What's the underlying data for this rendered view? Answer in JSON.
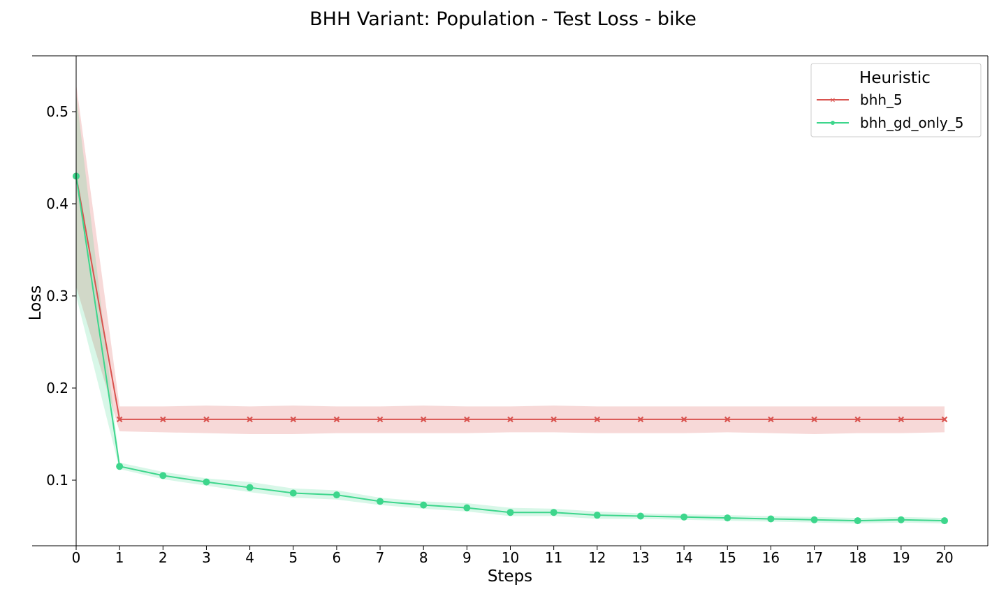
{
  "chart_data": {
    "type": "line",
    "title": "BHH Variant: Population - Test Loss - bike",
    "xlabel": "Steps",
    "ylabel": "Loss",
    "x": [
      0,
      1,
      2,
      3,
      4,
      5,
      6,
      7,
      8,
      9,
      10,
      11,
      12,
      13,
      14,
      15,
      16,
      17,
      18,
      19,
      20
    ],
    "xlim": [
      -1,
      21
    ],
    "ylim": [
      0.01,
      0.56
    ],
    "yticks": [
      0.1,
      0.2,
      0.3,
      0.4,
      0.5
    ],
    "grid": false,
    "legend": {
      "title": "Heuristic",
      "placement": "top-right"
    },
    "series": [
      {
        "name": "bhh_5",
        "color": "#d9534f",
        "marker": "x",
        "values": [
          0.43,
          0.166,
          0.166,
          0.166,
          0.166,
          0.166,
          0.166,
          0.166,
          0.166,
          0.166,
          0.166,
          0.166,
          0.166,
          0.166,
          0.166,
          0.166,
          0.166,
          0.166,
          0.166,
          0.166,
          0.166
        ],
        "lower": [
          0.31,
          0.153,
          0.152,
          0.151,
          0.15,
          0.15,
          0.151,
          0.151,
          0.151,
          0.151,
          0.152,
          0.152,
          0.151,
          0.151,
          0.151,
          0.152,
          0.151,
          0.15,
          0.151,
          0.151,
          0.152
        ],
        "upper": [
          0.53,
          0.18,
          0.18,
          0.181,
          0.18,
          0.181,
          0.18,
          0.18,
          0.181,
          0.18,
          0.18,
          0.181,
          0.18,
          0.18,
          0.18,
          0.18,
          0.18,
          0.18,
          0.18,
          0.18,
          0.18
        ]
      },
      {
        "name": "bhh_gd_only_5",
        "color": "#3dd68c",
        "marker": "o",
        "values": [
          0.43,
          0.115,
          0.105,
          0.098,
          0.092,
          0.086,
          0.084,
          0.077,
          0.073,
          0.07,
          0.065,
          0.065,
          0.062,
          0.061,
          0.06,
          0.059,
          0.058,
          0.057,
          0.056,
          0.057,
          0.056
        ],
        "lower": [
          0.3,
          0.112,
          0.101,
          0.094,
          0.087,
          0.081,
          0.079,
          0.073,
          0.069,
          0.066,
          0.061,
          0.061,
          0.058,
          0.058,
          0.057,
          0.056,
          0.055,
          0.054,
          0.053,
          0.054,
          0.053
        ],
        "upper": [
          0.52,
          0.119,
          0.109,
          0.102,
          0.098,
          0.091,
          0.089,
          0.081,
          0.077,
          0.075,
          0.07,
          0.069,
          0.066,
          0.064,
          0.063,
          0.062,
          0.061,
          0.06,
          0.059,
          0.06,
          0.059
        ]
      }
    ]
  }
}
